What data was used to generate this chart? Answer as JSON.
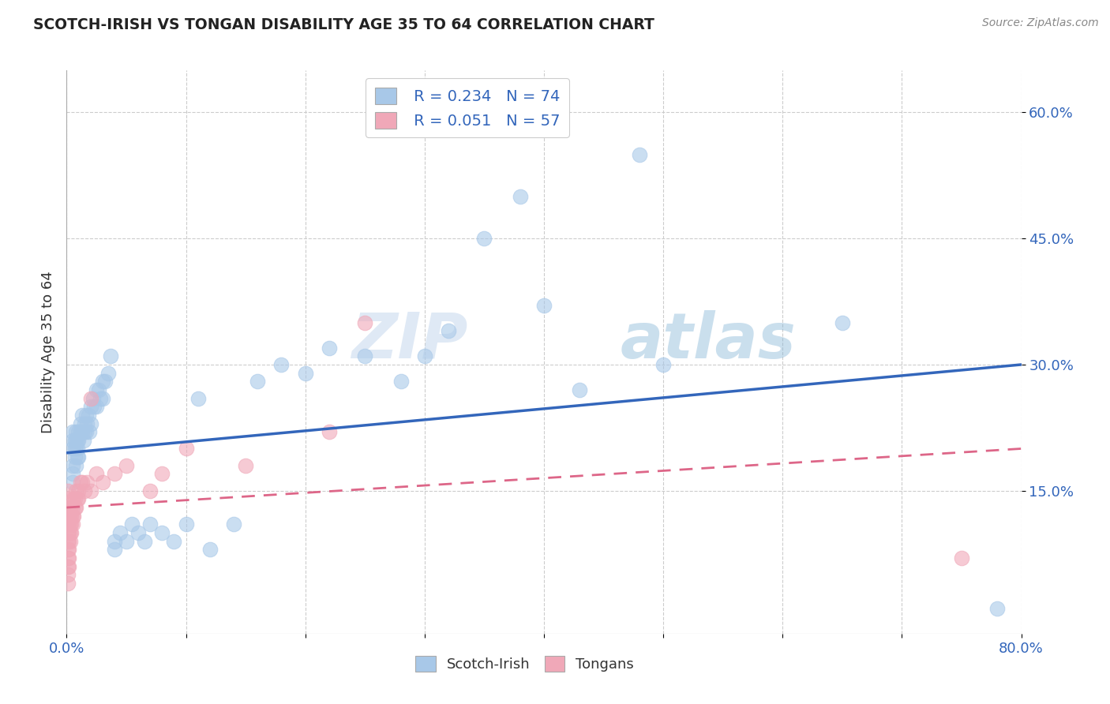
{
  "title": "SCOTCH-IRISH VS TONGAN DISABILITY AGE 35 TO 64 CORRELATION CHART",
  "source": "Source: ZipAtlas.com",
  "ylabel": "Disability Age 35 to 64",
  "xmin": 0.0,
  "xmax": 0.8,
  "ymin": -0.02,
  "ymax": 0.65,
  "x_tick_positions": [
    0.0,
    0.1,
    0.2,
    0.3,
    0.4,
    0.5,
    0.6,
    0.7,
    0.8
  ],
  "x_tick_labels": [
    "0.0%",
    "",
    "",
    "",
    "",
    "",
    "",
    "",
    "80.0%"
  ],
  "y_tick_positions": [
    0.15,
    0.3,
    0.45,
    0.6
  ],
  "y_tick_labels": [
    "15.0%",
    "30.0%",
    "45.0%",
    "60.0%"
  ],
  "grid_color": "#cccccc",
  "background_color": "#ffffff",
  "scotch_irish_color": "#a8c8e8",
  "tongan_color": "#f0a8b8",
  "scotch_irish_line_color": "#3366bb",
  "tongan_line_color": "#dd6688",
  "scotch_irish_R": 0.234,
  "scotch_irish_N": 74,
  "tongan_R": 0.051,
  "tongan_N": 57,
  "watermark_zip": "ZIP",
  "watermark_atlas": "atlas",
  "legend_label1": "Scotch-Irish",
  "legend_label2": "Tongans",
  "legend_R1": "R = 0.234",
  "legend_N1": "N = 74",
  "legend_R2": "R = 0.051",
  "legend_N2": "N = 57",
  "si_line_x0": 0.0,
  "si_line_y0": 0.195,
  "si_line_x1": 0.8,
  "si_line_y1": 0.3,
  "to_line_x0": 0.0,
  "to_line_y0": 0.13,
  "to_line_x1": 0.8,
  "to_line_y1": 0.2,
  "scotch_irish_x": [
    0.005,
    0.005,
    0.005,
    0.005,
    0.005,
    0.005,
    0.007,
    0.007,
    0.007,
    0.008,
    0.008,
    0.008,
    0.008,
    0.009,
    0.009,
    0.009,
    0.01,
    0.01,
    0.01,
    0.012,
    0.012,
    0.013,
    0.013,
    0.014,
    0.015,
    0.015,
    0.016,
    0.016,
    0.017,
    0.018,
    0.019,
    0.02,
    0.02,
    0.022,
    0.023,
    0.025,
    0.025,
    0.027,
    0.028,
    0.03,
    0.03,
    0.032,
    0.035,
    0.037,
    0.04,
    0.04,
    0.045,
    0.05,
    0.055,
    0.06,
    0.065,
    0.07,
    0.08,
    0.09,
    0.1,
    0.11,
    0.12,
    0.14,
    0.16,
    0.18,
    0.2,
    0.22,
    0.25,
    0.28,
    0.3,
    0.32,
    0.35,
    0.38,
    0.4,
    0.43,
    0.48,
    0.5,
    0.65,
    0.78
  ],
  "scotch_irish_y": [
    0.2,
    0.21,
    0.22,
    0.18,
    0.17,
    0.16,
    0.21,
    0.2,
    0.19,
    0.22,
    0.21,
    0.2,
    0.18,
    0.21,
    0.2,
    0.19,
    0.22,
    0.21,
    0.19,
    0.23,
    0.22,
    0.24,
    0.22,
    0.21,
    0.23,
    0.22,
    0.24,
    0.22,
    0.23,
    0.24,
    0.22,
    0.25,
    0.23,
    0.26,
    0.25,
    0.27,
    0.25,
    0.27,
    0.26,
    0.28,
    0.26,
    0.28,
    0.29,
    0.31,
    0.09,
    0.08,
    0.1,
    0.09,
    0.11,
    0.1,
    0.09,
    0.11,
    0.1,
    0.09,
    0.11,
    0.26,
    0.08,
    0.11,
    0.28,
    0.3,
    0.29,
    0.32,
    0.31,
    0.28,
    0.31,
    0.34,
    0.45,
    0.5,
    0.37,
    0.27,
    0.55,
    0.3,
    0.35,
    0.01
  ],
  "tongan_x": [
    0.001,
    0.001,
    0.001,
    0.001,
    0.001,
    0.001,
    0.001,
    0.001,
    0.001,
    0.001,
    0.001,
    0.001,
    0.002,
    0.002,
    0.002,
    0.002,
    0.002,
    0.002,
    0.002,
    0.002,
    0.003,
    0.003,
    0.003,
    0.003,
    0.003,
    0.004,
    0.004,
    0.004,
    0.005,
    0.005,
    0.005,
    0.006,
    0.006,
    0.007,
    0.007,
    0.008,
    0.008,
    0.009,
    0.01,
    0.01,
    0.012,
    0.013,
    0.015,
    0.017,
    0.02,
    0.02,
    0.025,
    0.03,
    0.04,
    0.05,
    0.07,
    0.08,
    0.1,
    0.15,
    0.22,
    0.25,
    0.75
  ],
  "tongan_y": [
    0.1,
    0.11,
    0.12,
    0.13,
    0.09,
    0.08,
    0.14,
    0.07,
    0.06,
    0.05,
    0.04,
    0.15,
    0.11,
    0.12,
    0.1,
    0.09,
    0.13,
    0.08,
    0.07,
    0.06,
    0.12,
    0.11,
    0.1,
    0.09,
    0.13,
    0.11,
    0.1,
    0.12,
    0.13,
    0.12,
    0.11,
    0.14,
    0.12,
    0.13,
    0.14,
    0.15,
    0.13,
    0.14,
    0.15,
    0.14,
    0.16,
    0.16,
    0.15,
    0.16,
    0.15,
    0.26,
    0.17,
    0.16,
    0.17,
    0.18,
    0.15,
    0.17,
    0.2,
    0.18,
    0.22,
    0.35,
    0.07
  ]
}
